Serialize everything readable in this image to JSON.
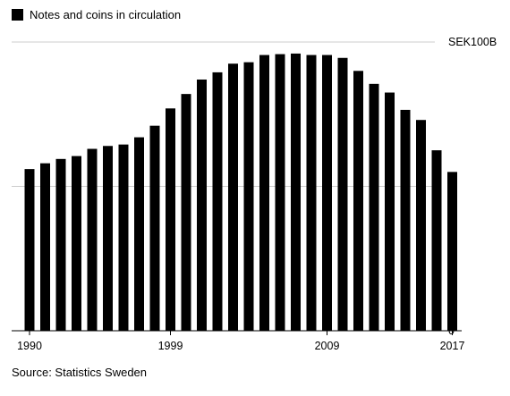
{
  "legend": {
    "label": "Notes and coins in circulation",
    "color": "#000000"
  },
  "source": "Source: Statistics Sweden",
  "chart_data": {
    "type": "bar",
    "title": "",
    "xlabel": "",
    "ylabel": "",
    "series": [
      {
        "name": "Notes and coins in circulation"
      }
    ],
    "categories": [
      "1990",
      "1991",
      "1992",
      "1993",
      "1994",
      "1995",
      "1996",
      "1997",
      "1998",
      "1999",
      "2000",
      "2001",
      "2002",
      "2003",
      "2004",
      "2005",
      "2006",
      "2007",
      "2008",
      "2009",
      "2010",
      "2011",
      "2012",
      "2013",
      "2014",
      "2015",
      "2016",
      "2017"
    ],
    "values": [
      56,
      58,
      59.5,
      60.5,
      63,
      64,
      64.5,
      67,
      71,
      77,
      82,
      87,
      89.5,
      92.5,
      93,
      95.5,
      95.8,
      96,
      95.5,
      95.5,
      94.5,
      90,
      85.5,
      82.5,
      76.5,
      73,
      62.5,
      55
    ],
    "ylim": [
      0,
      100
    ],
    "y_ticks": [
      {
        "value": 100,
        "label": "SEK100B"
      },
      {
        "value": 50,
        "label": ""
      },
      {
        "value": 0,
        "label": "0"
      }
    ],
    "x_tick_labels": [
      "1990",
      "1999",
      "2009",
      "2017"
    ],
    "grid": true,
    "bar_color": "#000000",
    "grid_color": "#cccccc"
  }
}
